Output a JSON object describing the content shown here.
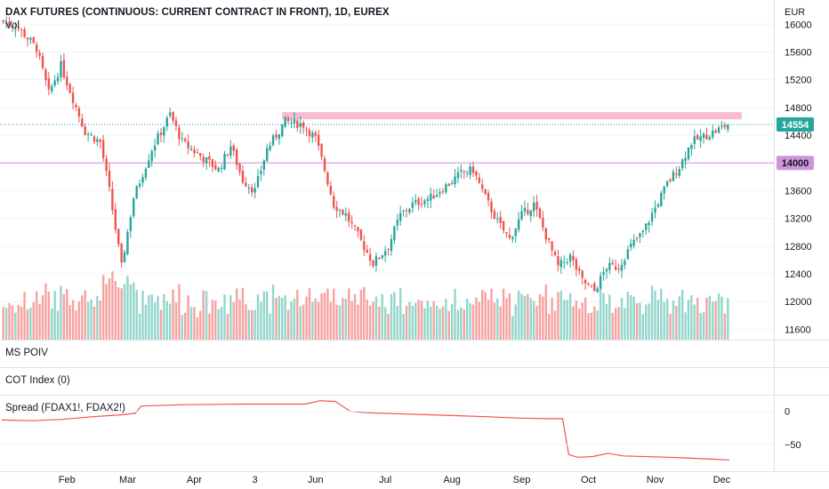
{
  "header": {
    "title": "DAX FUTURES (CONTINUOUS: CURRENT CONTRACT IN FRONT), 1D, EUREX",
    "vol_label": "Vol",
    "currency": "EUR"
  },
  "panes": {
    "ms_poiv": "MS POIV",
    "cot_index": "COT Index (0)",
    "spread": "Spread (FDAX1!, FDAX2!)"
  },
  "badges": {
    "last_price": "14554",
    "level": "14000"
  },
  "colors": {
    "up": "#26a69a",
    "down": "#ef5350",
    "vol_up": "#93d6cb",
    "vol_down": "#f5a3a0",
    "resistance": "#f8bbd0",
    "level_line": "#ce93d8",
    "spread_line": "#ef5350"
  },
  "chart_data": [
    {
      "type": "candlestick",
      "title": "DAX FUTURES (CONTINUOUS: CURRENT CONTRACT IN FRONT), 1D, EUREX",
      "ylabel": "EUR",
      "yticks": [
        11600,
        12000,
        12400,
        12800,
        13200,
        13600,
        14000,
        14400,
        14800,
        15200,
        15600,
        16000
      ],
      "xticks": [
        "Feb",
        "Mar",
        "Apr",
        "3",
        "Jun",
        "Jul",
        "Aug",
        "Sep",
        "Oct",
        "Nov",
        "Dec"
      ],
      "ylim": [
        11450,
        16350
      ],
      "path": [
        [
          0,
          16050
        ],
        [
          6,
          15950
        ],
        [
          12,
          15650
        ],
        [
          16,
          15000
        ],
        [
          20,
          15400
        ],
        [
          28,
          14450
        ],
        [
          33,
          14300
        ],
        [
          36,
          13600
        ],
        [
          40,
          12500
        ],
        [
          44,
          13500
        ],
        [
          50,
          14200
        ],
        [
          56,
          14700
        ],
        [
          60,
          14300
        ],
        [
          66,
          14100
        ],
        [
          72,
          13900
        ],
        [
          76,
          14250
        ],
        [
          80,
          13750
        ],
        [
          84,
          13600
        ],
        [
          88,
          14200
        ],
        [
          94,
          14600
        ],
        [
          100,
          14550
        ],
        [
          104,
          14350
        ],
        [
          107,
          13900
        ],
        [
          110,
          13400
        ],
        [
          114,
          13250
        ],
        [
          118,
          12950
        ],
        [
          123,
          12550
        ],
        [
          128,
          12800
        ],
        [
          132,
          13250
        ],
        [
          136,
          13400
        ],
        [
          142,
          13500
        ],
        [
          148,
          13700
        ],
        [
          152,
          13850
        ],
        [
          156,
          13900
        ],
        [
          160,
          13500
        ],
        [
          164,
          13150
        ],
        [
          168,
          12900
        ],
        [
          172,
          13250
        ],
        [
          176,
          13400
        ],
        [
          180,
          12950
        ],
        [
          184,
          12500
        ],
        [
          188,
          12650
        ],
        [
          192,
          12300
        ],
        [
          196,
          12150
        ],
        [
          200,
          12500
        ],
        [
          204,
          12500
        ],
        [
          208,
          12800
        ],
        [
          212,
          13000
        ],
        [
          216,
          13350
        ],
        [
          220,
          13700
        ],
        [
          224,
          13950
        ],
        [
          228,
          14300
        ],
        [
          232,
          14380
        ],
        [
          236,
          14460
        ],
        [
          240,
          14554
        ]
      ],
      "volume_range": [
        5,
        95
      ],
      "last_price": 14554,
      "resistance_level": 14680,
      "support_level": 14000
    },
    {
      "type": "line",
      "title": "Spread (FDAX1!, FDAX2!)",
      "yticks": [
        0,
        -50
      ],
      "ylim": [
        -90,
        25
      ],
      "path": [
        [
          0,
          -13
        ],
        [
          10,
          -14
        ],
        [
          20,
          -12
        ],
        [
          30,
          -8
        ],
        [
          40,
          -5
        ],
        [
          44,
          -3
        ],
        [
          46,
          8
        ],
        [
          60,
          10
        ],
        [
          80,
          11
        ],
        [
          100,
          11
        ],
        [
          105,
          16
        ],
        [
          110,
          15
        ],
        [
          115,
          0
        ],
        [
          120,
          -2
        ],
        [
          140,
          -5
        ],
        [
          160,
          -8
        ],
        [
          170,
          -10
        ],
        [
          180,
          -11
        ],
        [
          185,
          -11
        ],
        [
          187,
          -65
        ],
        [
          190,
          -69
        ],
        [
          195,
          -68
        ],
        [
          200,
          -63
        ],
        [
          205,
          -67
        ],
        [
          220,
          -69
        ],
        [
          235,
          -72
        ],
        [
          240,
          -73
        ]
      ]
    }
  ]
}
